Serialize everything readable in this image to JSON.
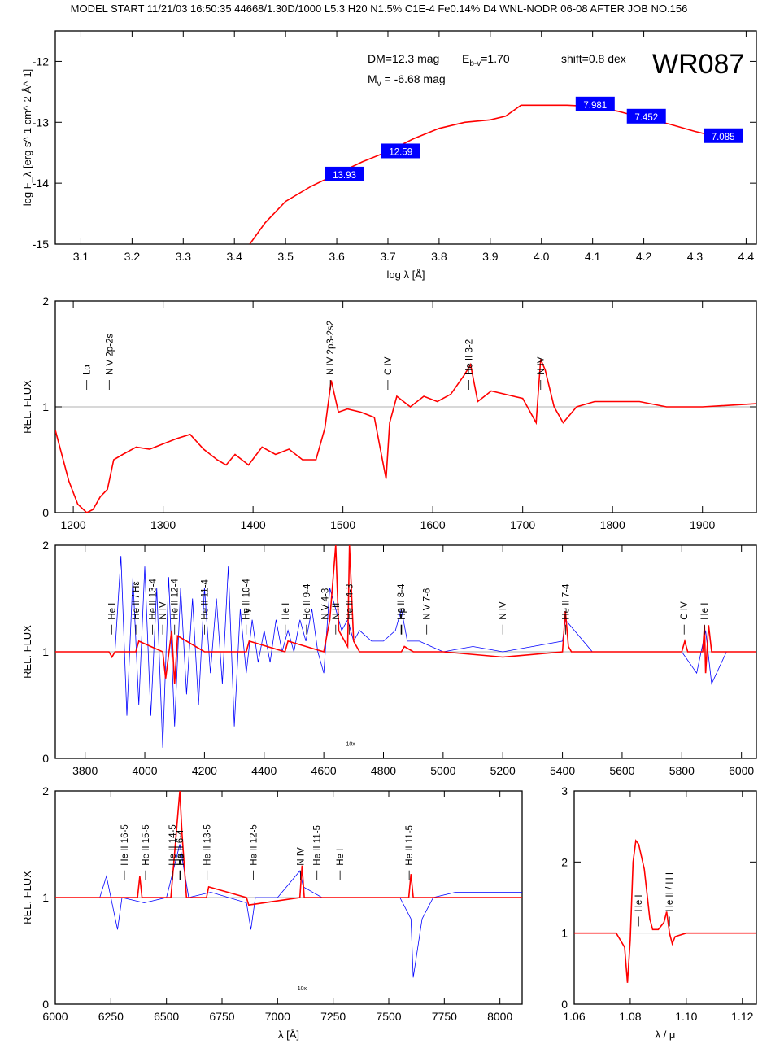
{
  "header": "MODEL START   11/21/03  16:50:35   44668/1.30D/1000 L5.3 H20 N1.5% C1E-4 Fe0.14% D4 WNL-NODR 06-08    AFTER JOB NO.156",
  "star_name": "WR087",
  "annotations": {
    "dm": "DM=12.3 mag",
    "ebv": "E",
    "ebv_sub": "b-v",
    "ebv_val": "=1.70",
    "shift": "shift=0.8 dex",
    "mv": "M",
    "mv_sub": "v",
    "mv_val": " = -6.68 mag"
  },
  "colors": {
    "model": "#ff0000",
    "observed": "#0000ff",
    "box": "#0000ff",
    "box_text": "#ffffff",
    "grid": "#999999"
  },
  "chart_data": [
    {
      "id": "sed",
      "type": "line",
      "xlabel": "log λ [Å]",
      "ylabel": "log F_λ [erg s^-1 cm^-2 Å^-1]",
      "xlim": [
        3.05,
        4.42
      ],
      "ylim": [
        -15,
        -11.5
      ],
      "xticks": [
        "3.1",
        "3.2",
        "3.3",
        "3.4",
        "3.5",
        "3.6",
        "3.7",
        "3.8",
        "3.9",
        "4.0",
        "4.1",
        "4.2",
        "4.3",
        "4.4"
      ],
      "yticks": [
        "-12",
        "-13",
        "-14",
        "-15"
      ],
      "model": {
        "x": [
          3.43,
          3.46,
          3.5,
          3.55,
          3.6,
          3.65,
          3.7,
          3.75,
          3.8,
          3.85,
          3.9,
          3.93,
          3.96,
          4.0,
          4.05,
          4.1,
          4.15,
          4.2,
          4.25,
          4.3,
          4.35
        ],
        "y": [
          -15.0,
          -14.65,
          -14.3,
          -14.05,
          -13.85,
          -13.65,
          -13.48,
          -13.27,
          -13.1,
          -13.0,
          -12.96,
          -12.9,
          -12.72,
          -12.72,
          -12.72,
          -12.74,
          -12.82,
          -12.93,
          -13.03,
          -13.15,
          -13.25
        ]
      },
      "photometry": [
        {
          "x": 3.615,
          "y": -13.85,
          "label": "13.93"
        },
        {
          "x": 3.725,
          "y": -13.47,
          "label": "12.59"
        },
        {
          "x": 4.105,
          "y": -12.7,
          "label": "7.981"
        },
        {
          "x": 4.205,
          "y": -12.9,
          "label": "7.452"
        },
        {
          "x": 4.355,
          "y": -13.22,
          "label": "7.085"
        }
      ]
    },
    {
      "id": "uv",
      "type": "line",
      "ylabel": "REL. FLUX",
      "xlim": [
        1180,
        1960
      ],
      "ylim": [
        0,
        2
      ],
      "xticks": [
        "1200",
        "1300",
        "1400",
        "1500",
        "1600",
        "1700",
        "1800",
        "1900"
      ],
      "yticks": [
        "0",
        "1",
        "2"
      ],
      "model": {
        "x": [
          1180,
          1195,
          1205,
          1215,
          1222,
          1230,
          1238,
          1245,
          1255,
          1270,
          1285,
          1300,
          1315,
          1330,
          1345,
          1360,
          1370,
          1380,
          1395,
          1410,
          1425,
          1440,
          1455,
          1470,
          1480,
          1487,
          1495,
          1505,
          1520,
          1535,
          1545,
          1548,
          1552,
          1560,
          1575,
          1590,
          1605,
          1620,
          1635,
          1642,
          1650,
          1665,
          1680,
          1700,
          1715,
          1720,
          1725,
          1735,
          1745,
          1760,
          1780,
          1800,
          1830,
          1860,
          1900,
          1960
        ],
        "y": [
          0.78,
          0.3,
          0.08,
          0.0,
          0.03,
          0.15,
          0.22,
          0.5,
          0.55,
          0.62,
          0.6,
          0.65,
          0.7,
          0.74,
          0.6,
          0.5,
          0.45,
          0.55,
          0.45,
          0.62,
          0.55,
          0.6,
          0.5,
          0.5,
          0.8,
          1.25,
          0.95,
          0.98,
          0.95,
          0.9,
          0.45,
          0.32,
          0.85,
          1.1,
          1.0,
          1.1,
          1.05,
          1.12,
          1.3,
          1.4,
          1.05,
          1.15,
          1.12,
          1.08,
          0.85,
          1.45,
          1.35,
          1.0,
          0.85,
          1.0,
          1.05,
          1.05,
          1.05,
          1.0,
          1.0,
          1.03
        ]
      },
      "lines": [
        {
          "x": 1215,
          "label": "Lα"
        },
        {
          "x": 1240,
          "label": "N V 2p-2s"
        },
        {
          "x": 1486,
          "label": "N IV 2p3-2s2"
        },
        {
          "x": 1550,
          "label": "C IV"
        },
        {
          "x": 1640,
          "label": "He II 3-2"
        },
        {
          "x": 1720,
          "label": "N IV"
        }
      ]
    },
    {
      "id": "optical",
      "type": "line",
      "ylabel": "REL. FLUX",
      "xlim": [
        3700,
        6050
      ],
      "ylim": [
        0,
        2
      ],
      "xticks": [
        "3800",
        "4000",
        "4200",
        "4400",
        "4600",
        "4800",
        "5000",
        "5200",
        "5400",
        "5600",
        "5800",
        "6000"
      ],
      "yticks": [
        "0",
        "1",
        "2"
      ],
      "model": {
        "x": [
          3700,
          3880,
          3890,
          3900,
          3970,
          3980,
          4060,
          4070,
          4090,
          4100,
          4110,
          4200,
          4340,
          4350,
          4470,
          4480,
          4600,
          4620,
          4640,
          4650,
          4660,
          4680,
          4686,
          4700,
          4720,
          4860,
          4870,
          4900,
          5000,
          5200,
          5400,
          5410,
          5420,
          5430,
          5800,
          5810,
          5820,
          5870,
          5876,
          5880,
          5890,
          5900,
          6050
        ],
        "y": [
          1.0,
          1.0,
          0.95,
          1.0,
          1.0,
          1.1,
          1.0,
          0.75,
          1.2,
          0.7,
          1.15,
          1.0,
          1.0,
          1.1,
          1.0,
          1.1,
          1.0,
          1.3,
          2.0,
          1.2,
          1.15,
          1.05,
          2.0,
          1.1,
          1.0,
          1.0,
          1.05,
          1.0,
          1.0,
          0.95,
          1.0,
          1.38,
          1.05,
          1.0,
          1.0,
          1.1,
          1.0,
          1.0,
          1.25,
          0.8,
          1.25,
          1.0,
          1.0
        ]
      },
      "observed": {
        "x": [
          3900,
          3920,
          3940,
          3960,
          3980,
          4000,
          4020,
          4040,
          4060,
          4080,
          4100,
          4120,
          4140,
          4160,
          4180,
          4200,
          4220,
          4240,
          4260,
          4280,
          4300,
          4320,
          4340,
          4360,
          4380,
          4400,
          4420,
          4440,
          4460,
          4480,
          4500,
          4520,
          4540,
          4560,
          4580,
          4600,
          4620,
          4640,
          4660,
          4680,
          4700,
          4720,
          4760,
          4800,
          4840,
          4860,
          4880,
          4920,
          4960,
          5000,
          5100,
          5200,
          5300,
          5400,
          5410,
          5500,
          5600,
          5700,
          5800,
          5850,
          5880,
          5900,
          5950,
          6050
        ],
        "y": [
          1.0,
          1.9,
          0.4,
          1.7,
          0.5,
          1.8,
          0.4,
          1.6,
          0.1,
          1.7,
          0.3,
          1.6,
          0.6,
          1.5,
          0.5,
          1.6,
          0.8,
          1.5,
          0.7,
          1.8,
          0.3,
          1.4,
          0.8,
          1.3,
          0.9,
          1.2,
          0.9,
          1.3,
          1.0,
          1.2,
          1.0,
          1.3,
          1.1,
          1.4,
          1.0,
          0.8,
          1.6,
          1.4,
          1.2,
          1.3,
          1.1,
          1.2,
          1.1,
          1.1,
          1.2,
          1.4,
          1.1,
          1.1,
          1.05,
          1.0,
          1.05,
          1.0,
          1.05,
          1.1,
          1.3,
          1.0,
          1.0,
          1.0,
          1.0,
          0.8,
          1.2,
          0.7,
          1.0,
          1.0
        ]
      },
      "lines": [
        {
          "x": 3889,
          "label": "He I"
        },
        {
          "x": 3970,
          "label": "He II / Hε"
        },
        {
          "x": 4026,
          "label": "He II 13-4"
        },
        {
          "x": 4060,
          "label": "N IV"
        },
        {
          "x": 4100,
          "label": "He II 12-4"
        },
        {
          "x": 4200,
          "label": "He II 11-4"
        },
        {
          "x": 4339,
          "label": "He II 10-4"
        },
        {
          "x": 4340,
          "label": "Hγ"
        },
        {
          "x": 4471,
          "label": "He I"
        },
        {
          "x": 4542,
          "label": "He II 9-4"
        },
        {
          "x": 4604,
          "label": "N V 4-3"
        },
        {
          "x": 4640,
          "label": "N III"
        },
        {
          "x": 4686,
          "label": "He II 4-3"
        },
        {
          "x": 4859,
          "label": "He II 8-4"
        },
        {
          "x": 4861,
          "label": "Hβ"
        },
        {
          "x": 4945,
          "label": "N V 7-6"
        },
        {
          "x": 5200,
          "label": "N IV"
        },
        {
          "x": 5411,
          "label": "He II 7-4"
        },
        {
          "x": 5808,
          "label": "C IV"
        },
        {
          "x": 5876,
          "label": "He I"
        }
      ],
      "inset_label": "10x"
    },
    {
      "id": "red",
      "type": "line",
      "xlabel": "λ [Å]",
      "ylabel": "REL. FLUX",
      "xlim": [
        6000,
        8100
      ],
      "ylim": [
        0,
        2
      ],
      "xticks": [
        "6000",
        "6250",
        "6500",
        "6750",
        "7000",
        "7250",
        "7500",
        "7750",
        "8000"
      ],
      "yticks": [
        "0",
        "1",
        "2"
      ],
      "model": {
        "x": [
          6000,
          6370,
          6380,
          6390,
          6520,
          6540,
          6560,
          6570,
          6590,
          6680,
          6690,
          6860,
          6870,
          7100,
          7110,
          7120,
          7200,
          7590,
          7600,
          7610,
          8100
        ],
        "y": [
          1.0,
          1.0,
          1.2,
          1.0,
          1.0,
          1.5,
          2.0,
          1.6,
          1.0,
          1.0,
          1.1,
          1.0,
          0.93,
          1.0,
          1.3,
          1.0,
          1.0,
          1.0,
          1.22,
          1.0,
          1.0
        ]
      },
      "observed": {
        "x": [
          6000,
          6200,
          6230,
          6280,
          6300,
          6400,
          6500,
          6560,
          6600,
          6700,
          6860,
          6880,
          6900,
          7000,
          7100,
          7115,
          7200,
          7400,
          7550,
          7600,
          7610,
          7650,
          7700,
          7800,
          8100
        ],
        "y": [
          1.0,
          1.0,
          1.2,
          0.7,
          1.0,
          0.95,
          1.0,
          1.5,
          1.0,
          1.05,
          0.95,
          0.7,
          1.0,
          1.0,
          1.25,
          1.1,
          1.0,
          1.0,
          1.0,
          0.8,
          0.25,
          0.8,
          1.0,
          1.05,
          1.05
        ]
      },
      "lines": [
        {
          "x": 6311,
          "label": "He II 16-5"
        },
        {
          "x": 6406,
          "label": "He II 15-5"
        },
        {
          "x": 6527,
          "label": "He II 14-5"
        },
        {
          "x": 6560,
          "label": "He II 6-4"
        },
        {
          "x": 6563,
          "label": "Hα"
        },
        {
          "x": 6683,
          "label": "He II 13-5"
        },
        {
          "x": 6891,
          "label": "He II 12-5"
        },
        {
          "x": 7103,
          "label": "N IV"
        },
        {
          "x": 7177,
          "label": "He II 11-5"
        },
        {
          "x": 7281,
          "label": "He I"
        },
        {
          "x": 7592,
          "label": "He II 11-5"
        }
      ],
      "inset_label": "10x"
    },
    {
      "id": "ir",
      "type": "line",
      "xlabel": "λ / μ",
      "xlim": [
        1.06,
        1.125
      ],
      "ylim": [
        0,
        3
      ],
      "xticks": [
        "1.06",
        "1.08",
        "1.10",
        "1.12"
      ],
      "yticks": [
        "0",
        "1",
        "2",
        "3"
      ],
      "model": {
        "x": [
          1.06,
          1.075,
          1.078,
          1.079,
          1.08,
          1.081,
          1.082,
          1.083,
          1.085,
          1.087,
          1.088,
          1.09,
          1.092,
          1.093,
          1.094,
          1.095,
          1.096,
          1.1,
          1.125
        ],
        "y": [
          1.0,
          1.0,
          0.8,
          0.3,
          0.9,
          2.0,
          2.3,
          2.25,
          1.9,
          1.2,
          1.05,
          1.05,
          1.15,
          1.3,
          1.0,
          0.85,
          0.95,
          1.0,
          1.0
        ]
      },
      "lines": [
        {
          "x": 1.083,
          "label": "He I"
        },
        {
          "x": 1.094,
          "label": "He II / H I"
        }
      ]
    }
  ]
}
